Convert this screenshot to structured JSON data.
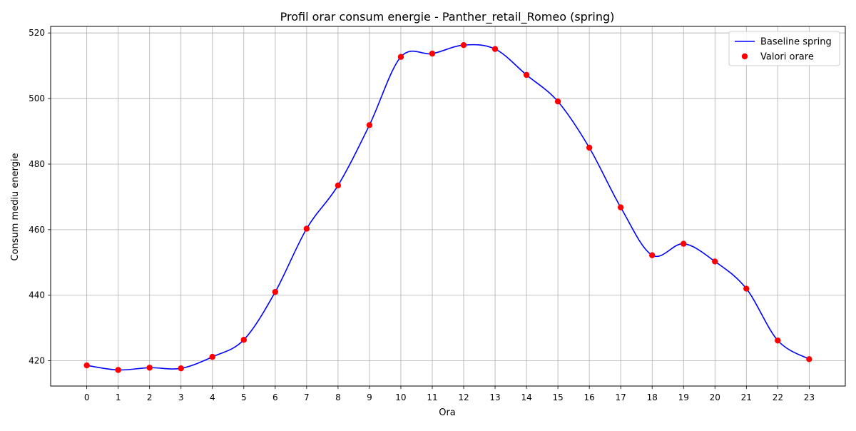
{
  "chart_data": {
    "type": "line",
    "title": "Profil orar consum energie - Panther_retail_Romeo (spring)",
    "xlabel": "Ora",
    "ylabel": "Consum mediu energie",
    "x": [
      0,
      1,
      2,
      3,
      4,
      5,
      6,
      7,
      8,
      9,
      10,
      11,
      12,
      13,
      14,
      15,
      16,
      17,
      18,
      19,
      20,
      21,
      22,
      23
    ],
    "xlim": [
      -1.15,
      24.15
    ],
    "ylim": [
      412.3,
      522.0
    ],
    "yticks": [
      420,
      440,
      460,
      480,
      500,
      520
    ],
    "grid": true,
    "legend_position": "top-right",
    "series": [
      {
        "name": "Baseline spring",
        "kind": "smooth-line",
        "color": "#0000ff",
        "values": [
          418.6,
          417.2,
          417.9,
          417.7,
          421.2,
          426.4,
          441.0,
          460.3,
          473.5,
          491.9,
          512.7,
          513.7,
          516.3,
          515.1,
          507.2,
          499.1,
          485.0,
          466.8,
          452.2,
          455.7,
          450.3,
          442.0,
          426.2,
          420.5
        ]
      },
      {
        "name": "Valori orare",
        "kind": "scatter",
        "color": "#ff0000",
        "values": [
          418.6,
          417.2,
          417.9,
          417.7,
          421.2,
          426.4,
          441.0,
          460.3,
          473.5,
          491.9,
          512.7,
          513.7,
          516.3,
          515.1,
          507.2,
          499.1,
          485.0,
          466.8,
          452.2,
          455.7,
          450.3,
          442.0,
          426.2,
          420.5
        ]
      }
    ]
  }
}
